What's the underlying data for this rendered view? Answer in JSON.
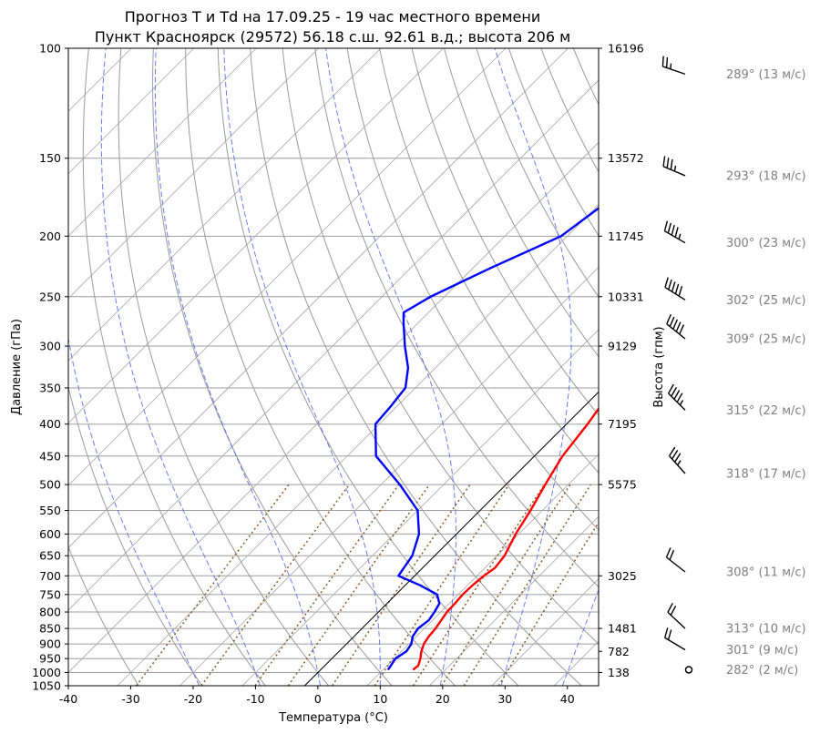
{
  "chart_data": {
    "type": "line",
    "title_line1": "Прогноз T и Td на 17.09.25 - 19 час местного времени",
    "title_line2": "Пункт Красноярск (29572) 56.18 с.ш. 92.61 в.д.; высота 206 м",
    "xlabel": "Температура (°C)",
    "ylabel": "Давление (гПа)",
    "ylabel_right": "Высота (гпм)",
    "xlim": [
      -40,
      45
    ],
    "ylim": [
      1050,
      100
    ],
    "y_scale": "log",
    "skew": true,
    "grid": true,
    "x_ticks": [
      "-40",
      "-30",
      "-20",
      "-10",
      "0",
      "10",
      "20",
      "30",
      "40"
    ],
    "pressure_ticks": [
      {
        "p": 100,
        "label": "100"
      },
      {
        "p": 150,
        "label": "150"
      },
      {
        "p": 200,
        "label": "200"
      },
      {
        "p": 250,
        "label": "250"
      },
      {
        "p": 300,
        "label": "300"
      },
      {
        "p": 350,
        "label": "350"
      },
      {
        "p": 400,
        "label": "400"
      },
      {
        "p": 450,
        "label": "450"
      },
      {
        "p": 500,
        "label": "500"
      },
      {
        "p": 550,
        "label": "550"
      },
      {
        "p": 600,
        "label": "600"
      },
      {
        "p": 650,
        "label": "650"
      },
      {
        "p": 700,
        "label": "700"
      },
      {
        "p": 750,
        "label": "750"
      },
      {
        "p": 800,
        "label": "800"
      },
      {
        "p": 850,
        "label": "850"
      },
      {
        "p": 900,
        "label": "900"
      },
      {
        "p": 950,
        "label": "950"
      },
      {
        "p": 1000,
        "label": "1000"
      },
      {
        "p": 1050,
        "label": "1050"
      }
    ],
    "height_ticks": [
      {
        "p": 100,
        "label": "16196"
      },
      {
        "p": 150,
        "label": "13572"
      },
      {
        "p": 200,
        "label": "11745"
      },
      {
        "p": 250,
        "label": "10331"
      },
      {
        "p": 300,
        "label": "9129"
      },
      {
        "p": 400,
        "label": "7195"
      },
      {
        "p": 500,
        "label": "5575"
      },
      {
        "p": 700,
        "label": "3025"
      },
      {
        "p": 850,
        "label": "1481"
      },
      {
        "p": 925,
        "label": "782"
      },
      {
        "p": 1000,
        "label": "138"
      }
    ],
    "series": [
      {
        "color": "#ff0000",
        "p": [
          990,
          975,
          950,
          925,
          900,
          875,
          850,
          825,
          800,
          775,
          750,
          725,
          700,
          680,
          650,
          600,
          550,
          500,
          450,
          400,
          375,
          350,
          325,
          300,
          275,
          250,
          225,
          200,
          175,
          150,
          125,
          110,
          100
        ],
        "t": [
          14.8,
          15.0,
          14.2,
          13.2,
          12.4,
          12.0,
          11.8,
          11.4,
          11.0,
          10.9,
          10.7,
          10.8,
          11.1,
          11.6,
          11.2,
          9.5,
          8.1,
          6.3,
          4.5,
          3.4,
          2.6,
          1.0,
          -1.4,
          -3.4,
          -6.0,
          -8.6,
          -11.2,
          -13.6,
          -16.4,
          -20.5,
          -26.0,
          -29.5,
          -32.5
        ]
      },
      {
        "color": "#0000ff",
        "p": [
          990,
          975,
          950,
          925,
          900,
          875,
          850,
          825,
          800,
          775,
          750,
          725,
          700,
          680,
          650,
          600,
          550,
          500,
          450,
          400,
          375,
          350,
          325,
          300,
          275,
          265,
          250,
          225,
          200,
          175,
          150,
          125,
          110,
          100
        ],
        "t": [
          10.8,
          10.6,
          10.2,
          10.8,
          10.4,
          9.4,
          9.0,
          9.4,
          9.0,
          8.4,
          6.6,
          2.4,
          -2.6,
          -3.0,
          -3.6,
          -6.0,
          -10.0,
          -17.0,
          -25.4,
          -30.6,
          -31.0,
          -31.6,
          -34.4,
          -38.4,
          -42.4,
          -44.0,
          -42.2,
          -37.2,
          -31.0,
          -29.0,
          -27.4,
          -26.2,
          -26.0,
          -25.5
        ]
      }
    ],
    "winds": [
      {
        "p": 110,
        "label": "289° (13 м/с)",
        "dir": 289,
        "speed": 13
      },
      {
        "p": 160,
        "label": "293° (18 м/с)",
        "dir": 293,
        "speed": 18
      },
      {
        "p": 205,
        "label": "300° (23 м/с)",
        "dir": 300,
        "speed": 23
      },
      {
        "p": 253,
        "label": "302° (25 м/с)",
        "dir": 302,
        "speed": 25
      },
      {
        "p": 292,
        "label": "309° (25 м/с)",
        "dir": 309,
        "speed": 25
      },
      {
        "p": 380,
        "label": "315° (22 м/с)",
        "dir": 315,
        "speed": 22
      },
      {
        "p": 480,
        "label": "318° (17 м/с)",
        "dir": 318,
        "speed": 17
      },
      {
        "p": 690,
        "label": "308° (11 м/с)",
        "dir": 308,
        "speed": 11
      },
      {
        "p": 850,
        "label": "313° (10 м/с)",
        "dir": 313,
        "speed": 10
      },
      {
        "p": 920,
        "label": "301° (9 м/с)",
        "dir": 301,
        "speed": 9
      },
      {
        "p": 990,
        "label": "282° (2 м/с)",
        "dir": 282,
        "speed": 2
      }
    ]
  }
}
